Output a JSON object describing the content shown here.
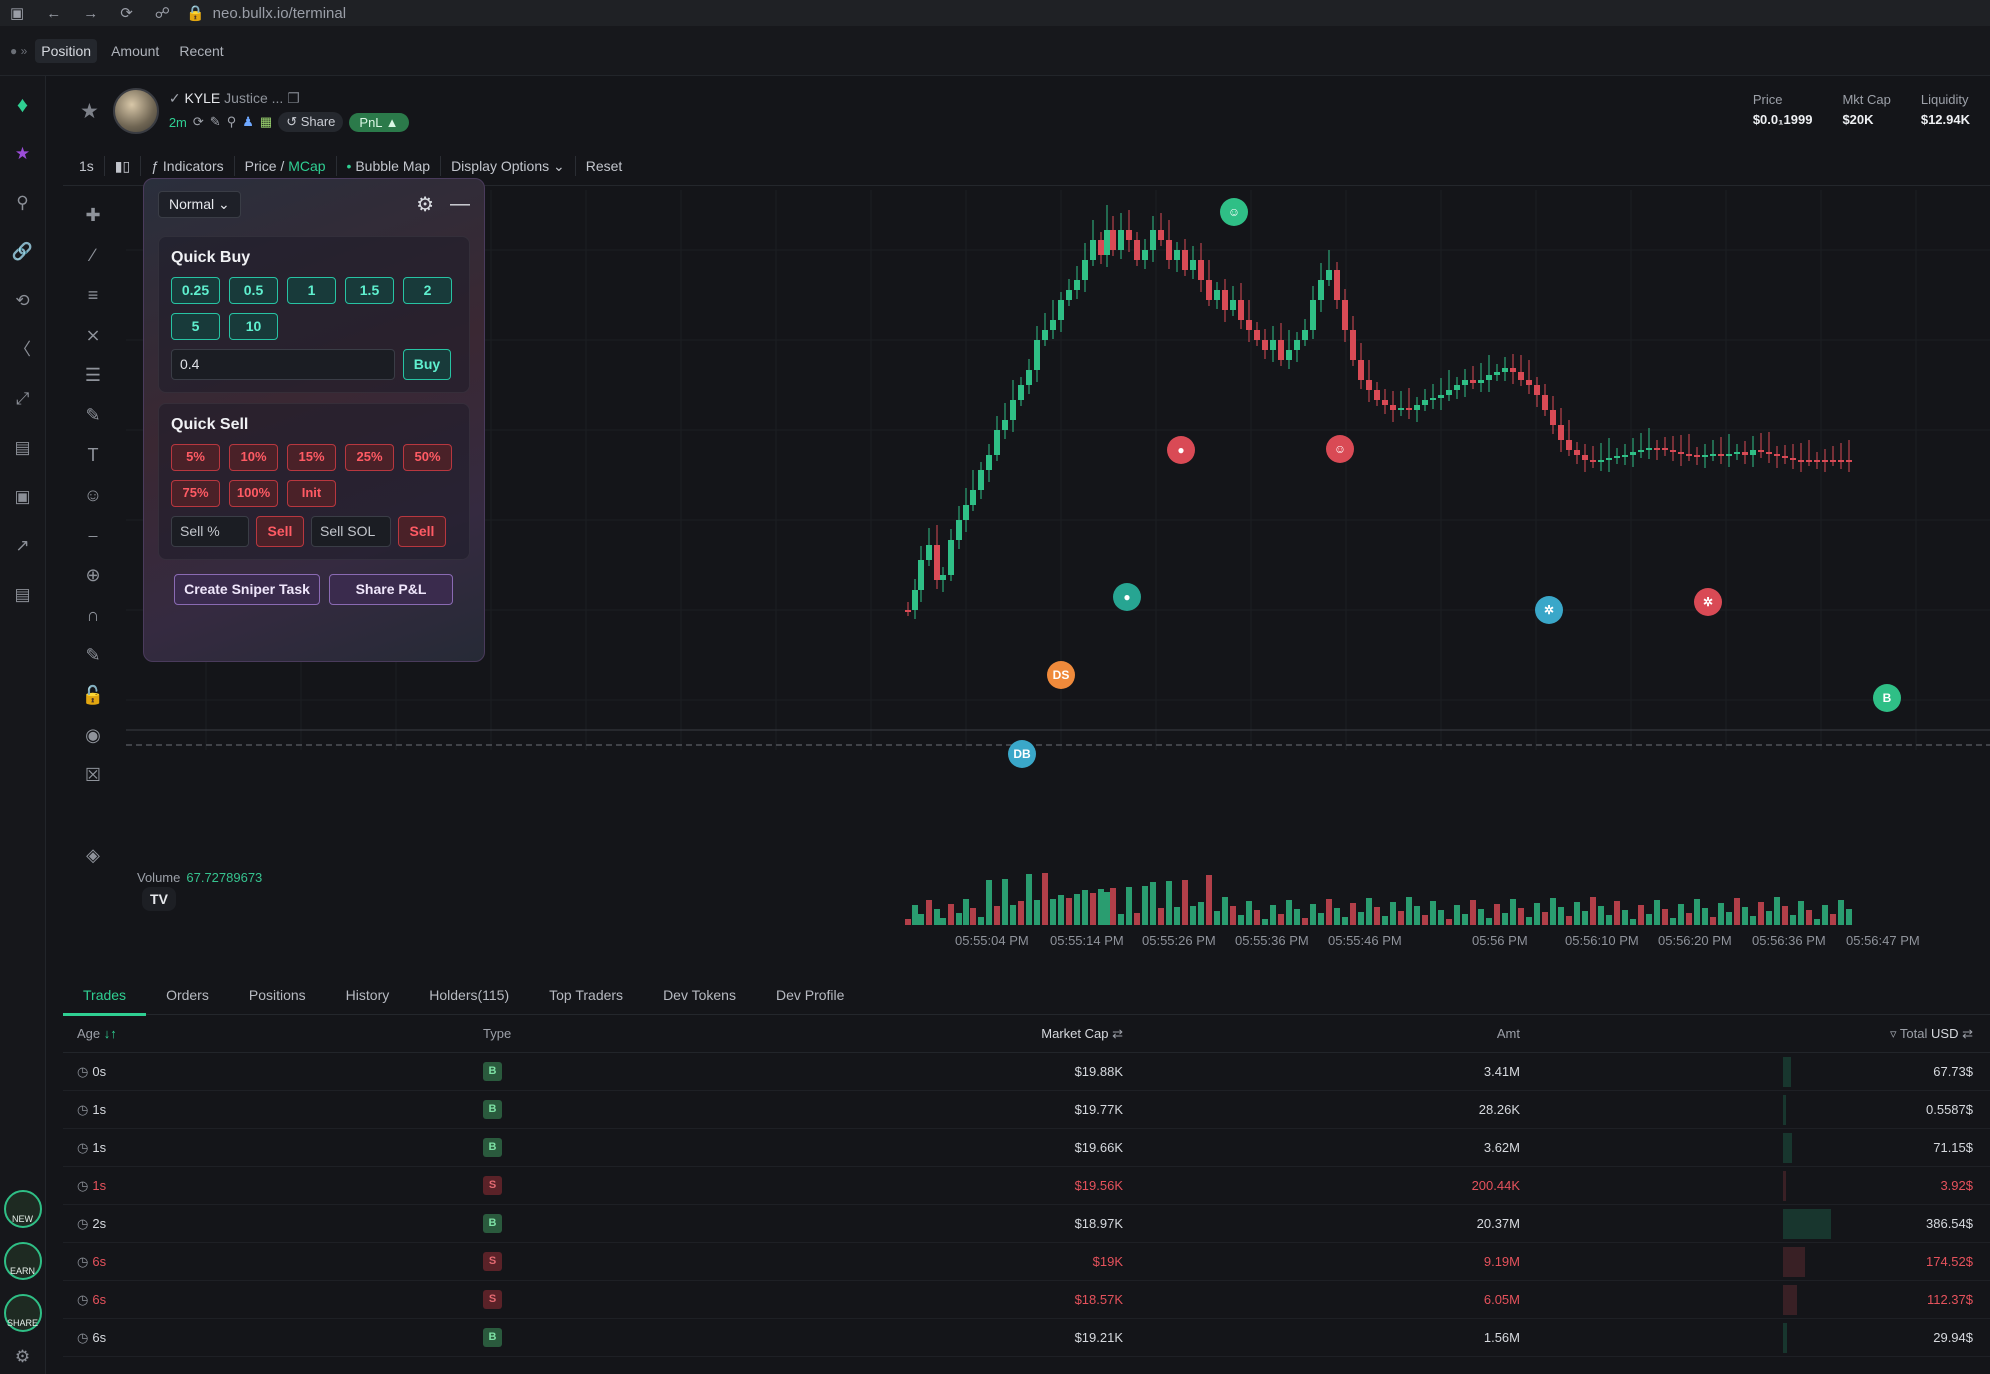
{
  "browser": {
    "url": "neo.bullx.io/terminal"
  },
  "topbar": {
    "tabs": [
      "Position",
      "Amount",
      "Recent"
    ]
  },
  "token": {
    "name": "KYLE",
    "fullname": "Justice ...",
    "age": "2m",
    "share_label": "Share",
    "pnl_label": "PnL"
  },
  "stats": [
    {
      "label": "Price",
      "value": "$0.0₁1999"
    },
    {
      "label": "Mkt Cap",
      "value": "$20K"
    },
    {
      "label": "Liquidity",
      "value": "$12.94K"
    }
  ],
  "chart_toolbar": {
    "interval": "1s",
    "indicators": "Indicators",
    "price": "Price",
    "mcap": "MCap",
    "bubble_map": "Bubble Map",
    "display_options": "Display Options",
    "reset": "Reset"
  },
  "panel": {
    "mode": "Normal",
    "quick_buy_title": "Quick Buy",
    "buy_amounts": [
      "0.25",
      "0.5",
      "1",
      "1.5",
      "2",
      "5",
      "10"
    ],
    "buy_input_value": "0.4",
    "buy_label": "Buy",
    "quick_sell_title": "Quick Sell",
    "sell_percents": [
      "5%",
      "10%",
      "15%",
      "25%",
      "50%",
      "75%",
      "100%",
      "Init"
    ],
    "sell_pct_placeholder": "Sell %",
    "sell_sol_placeholder": "Sell SOL",
    "sell_label": "Sell",
    "sniper_label": "Create Sniper Task",
    "share_pnl_label": "Share P&L"
  },
  "volume": {
    "label": "Volume",
    "value": "67.72789673"
  },
  "chart_data": {
    "type": "candlestick",
    "x": [
      "05:55:04 PM",
      "05:55:14 PM",
      "05:55:26 PM",
      "05:55:36 PM",
      "05:55:46 PM",
      "05:56 PM",
      "05:56:10 PM",
      "05:56:20 PM",
      "05:56:36 PM",
      "05:56:47 PM"
    ],
    "markers": [
      "DB",
      "DS",
      "B"
    ]
  },
  "tabs": [
    "Trades",
    "Orders",
    "Positions",
    "History",
    "Holders(115)",
    "Top Traders",
    "Dev Tokens",
    "Dev Profile"
  ],
  "table": {
    "headers": {
      "age": "Age",
      "type": "Type",
      "mcap": "Market Cap",
      "amt": "Amt",
      "total": "Total",
      "currency": "USD"
    },
    "rows": [
      {
        "age": "0s",
        "type": "B",
        "mcap": "$19.88K",
        "amt": "3.41M",
        "total": "67.73$"
      },
      {
        "age": "1s",
        "type": "B",
        "mcap": "$19.77K",
        "amt": "28.26K",
        "total": "0.5587$"
      },
      {
        "age": "1s",
        "type": "B",
        "mcap": "$19.66K",
        "amt": "3.62M",
        "total": "71.15$"
      },
      {
        "age": "1s",
        "type": "S",
        "mcap": "$19.56K",
        "amt": "200.44K",
        "total": "3.92$"
      },
      {
        "age": "2s",
        "type": "B",
        "mcap": "$18.97K",
        "amt": "20.37M",
        "total": "386.54$"
      },
      {
        "age": "6s",
        "type": "S",
        "mcap": "$19K",
        "amt": "9.19M",
        "total": "174.52$"
      },
      {
        "age": "6s",
        "type": "S",
        "mcap": "$18.57K",
        "amt": "6.05M",
        "total": "112.37$"
      },
      {
        "age": "6s",
        "type": "B",
        "mcap": "$19.21K",
        "amt": "1.56M",
        "total": "29.94$"
      }
    ]
  },
  "sidebar_badges": [
    "NEW",
    "EARN",
    "SHARE"
  ],
  "colors": {
    "buy": "#2fcf92",
    "sell": "#e5525c",
    "bg": "#141519"
  }
}
